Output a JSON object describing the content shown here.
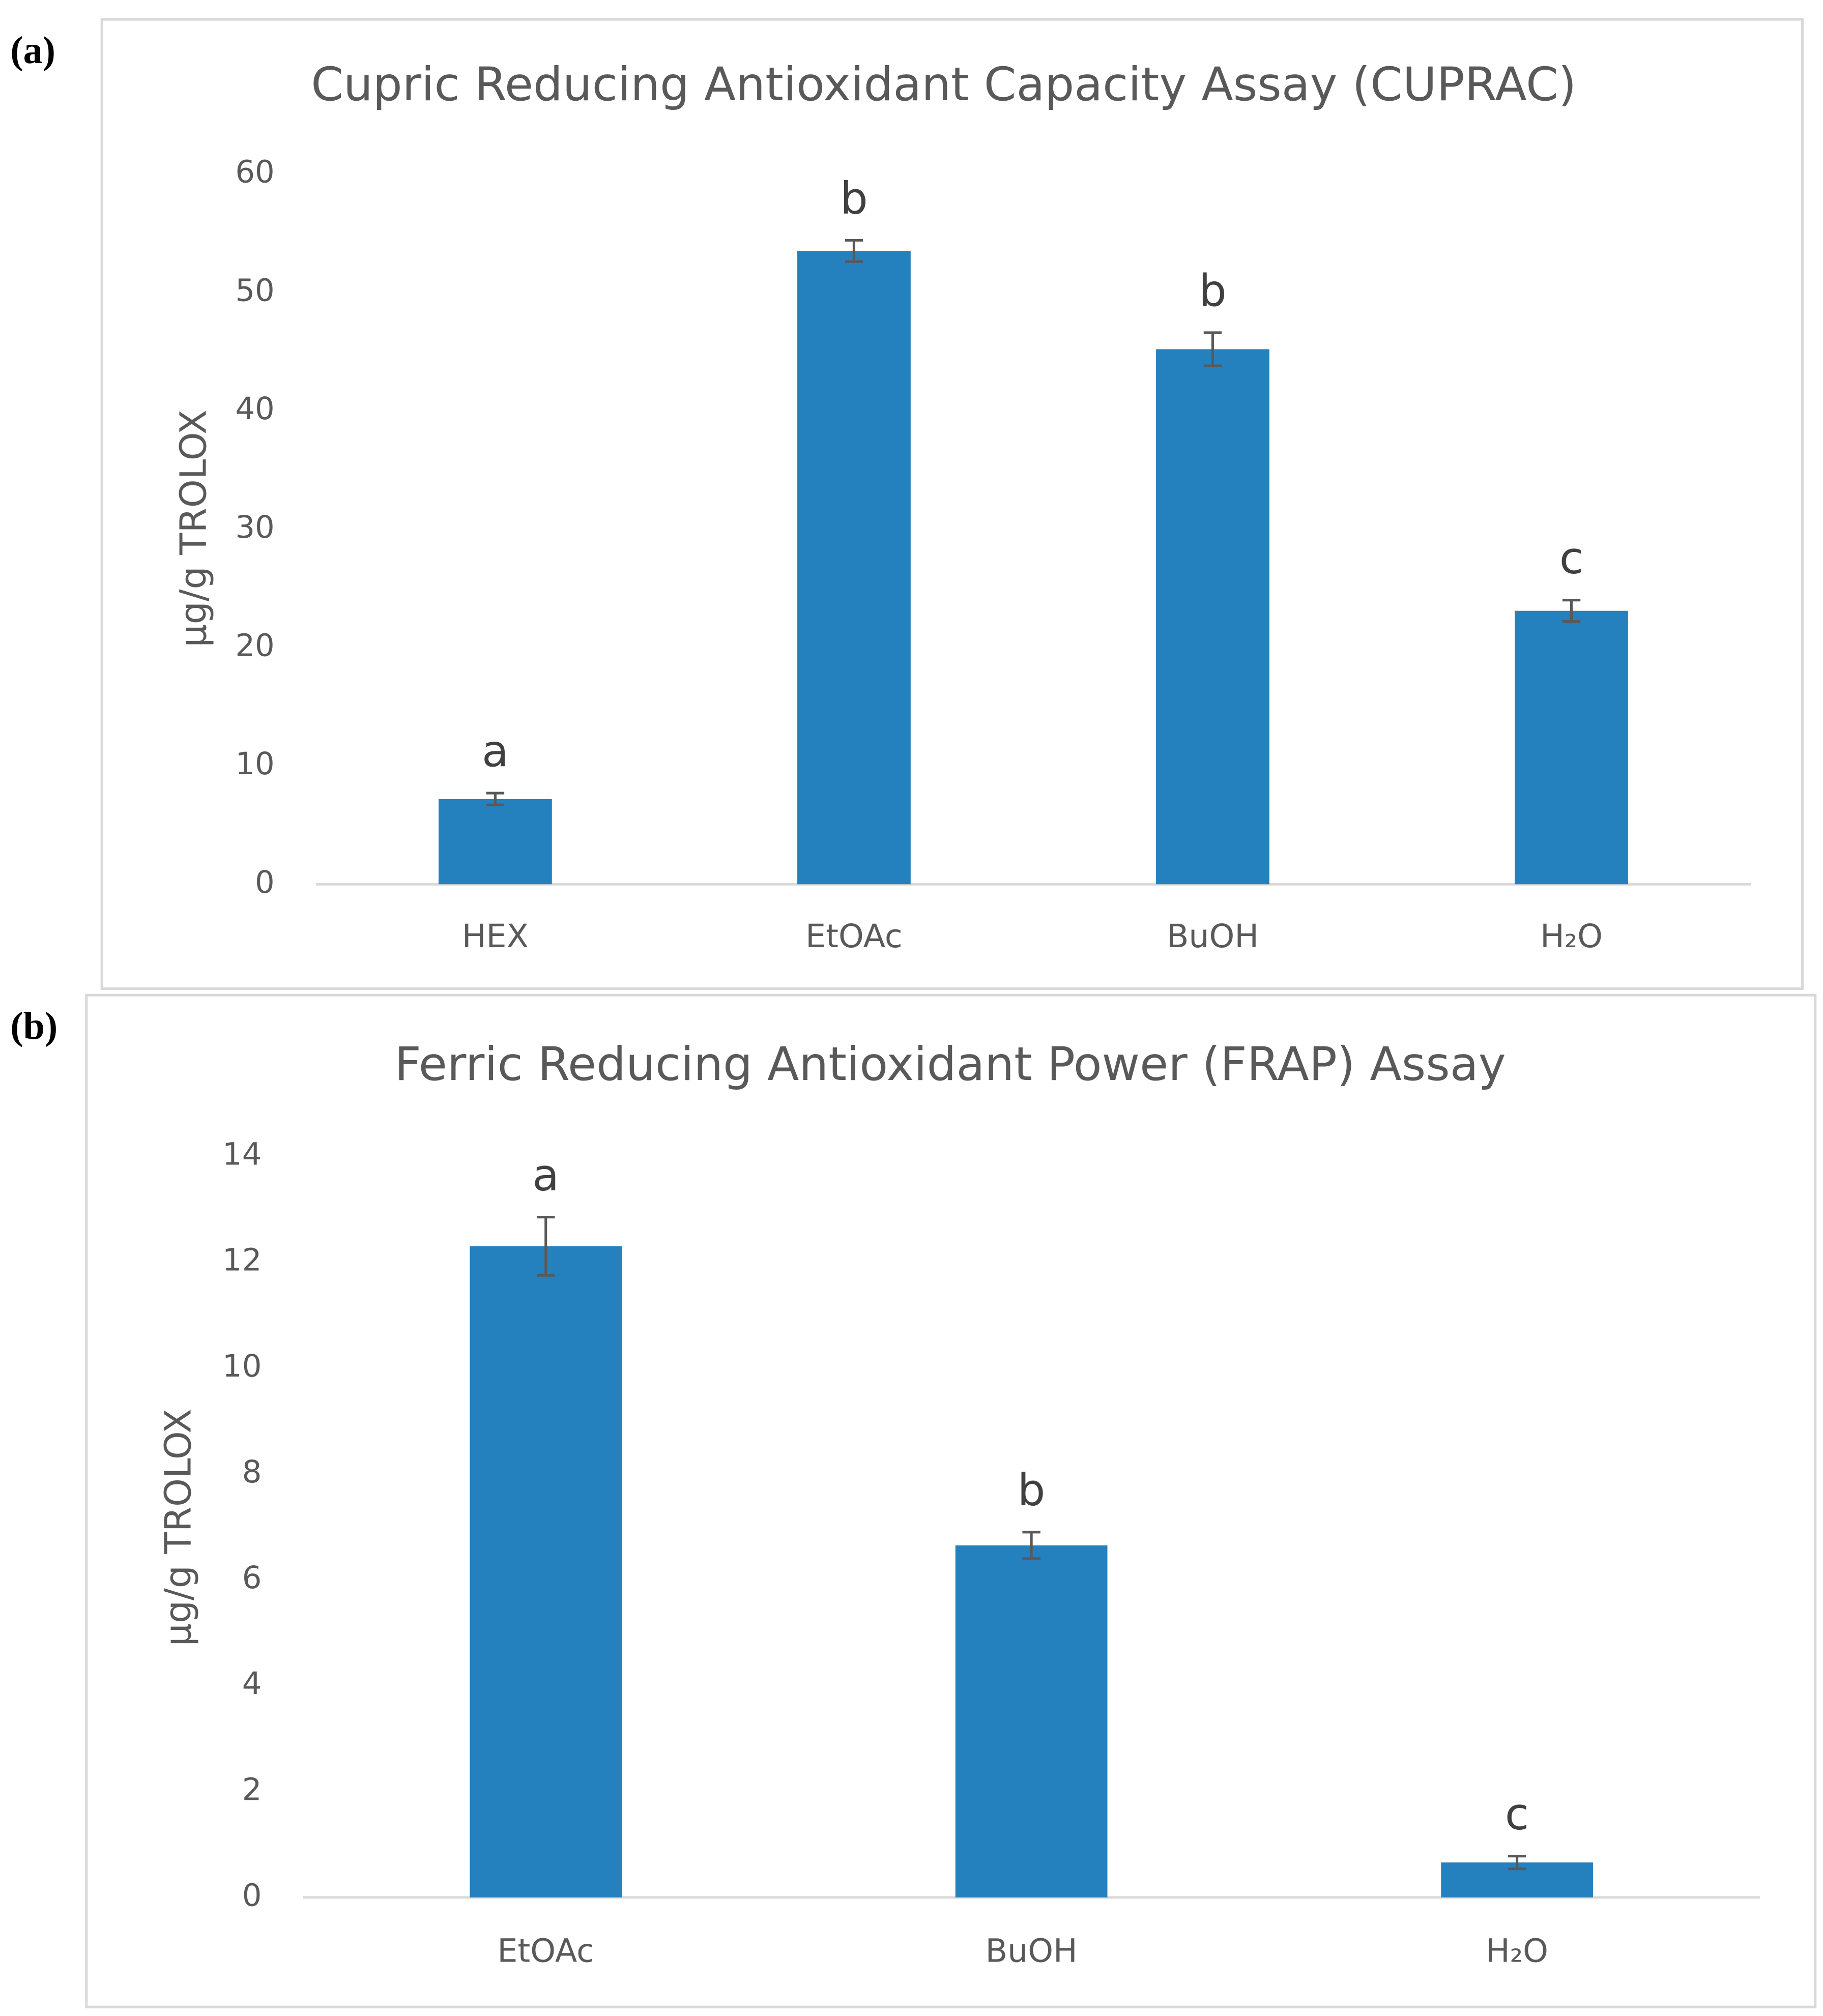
{
  "chart_data": [
    {
      "type": "bar",
      "panel_label": "(a)",
      "title": "Cupric Reducing Antioxidant Capacity Assay (CUPRAC)",
      "y_label": "µg/g TROLOX",
      "categories": [
        "HEX",
        "EtOAc",
        "BuOH",
        "H₂O"
      ],
      "values": [
        7.2,
        53.5,
        45.2,
        23.1
      ],
      "errors": [
        0.5,
        0.9,
        1.4,
        0.9
      ],
      "annotations": [
        "a",
        "b",
        "b",
        "c"
      ],
      "color": "#2580be",
      "ylim": [
        0,
        60
      ],
      "yticks": [
        0,
        10,
        20,
        30,
        40,
        50,
        60
      ],
      "grid": false
    },
    {
      "type": "bar",
      "panel_label": "(b)",
      "title": "Ferric Reducing Antioxidant Power (FRAP) Assay",
      "y_label": "µg/g TROLOX",
      "categories": [
        "EtOAc",
        "BuOH",
        "H₂O"
      ],
      "values": [
        12.3,
        6.65,
        0.66
      ],
      "errors": [
        0.55,
        0.25,
        0.12
      ],
      "annotations": [
        "a",
        "b",
        "c"
      ],
      "color": "#2580be",
      "ylim": [
        0,
        14
      ],
      "yticks": [
        0,
        2,
        4,
        6,
        8,
        10,
        12,
        14
      ],
      "grid": false
    }
  ]
}
